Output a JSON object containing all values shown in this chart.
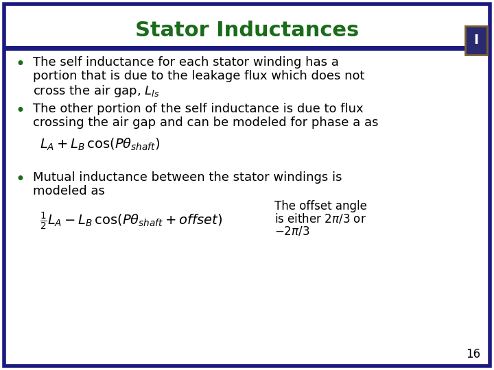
{
  "title": "Stator Inductances",
  "title_color": "#1a6b1a",
  "title_fontsize": 22,
  "background_color": "#ffffff",
  "border_color": "#1a1a80",
  "text_color": "#000000",
  "bullet_color": "#1a6b1a",
  "bullet1_line1": "The self inductance for each stator winding has a",
  "bullet1_line2": "portion that is due to the leakage flux which does not",
  "bullet1_line3": "cross the air gap, $L_{ls}$",
  "bullet2_line1": "The other portion of the self inductance is due to flux",
  "bullet2_line2": "crossing the air gap and can be modeled for phase a as",
  "formula1": "$L_A + L_B\\,\\mathrm{cos}(P\\theta_{shaft})$",
  "bullet3_line1": "Mutual inductance between the stator windings is",
  "bullet3_line2": "modeled as",
  "formula2": "$\\frac{1}{2}L_A - L_B\\,\\mathrm{cos}(P\\theta_{shaft} + offset)$",
  "annotation_line1": "The offset angle",
  "annotation_line2": "is either $2\\pi/3$ or",
  "annotation_line3": "$-2\\pi/3$",
  "page_number": "16",
  "font_size_body": 13,
  "font_size_annotation": 12,
  "font_size_formula": 13,
  "logo_color": "#2a2a6e",
  "logo_border": "#8B7355"
}
